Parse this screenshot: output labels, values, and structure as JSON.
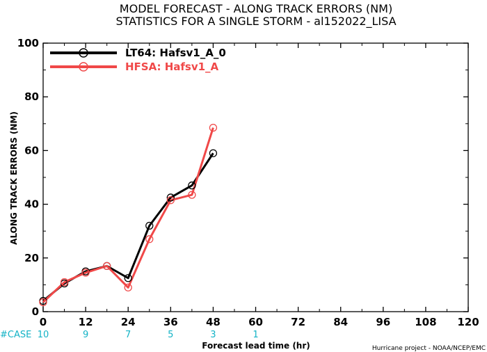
{
  "chart_data": {
    "type": "line",
    "title": "MODEL FORECAST - ALONG TRACK ERRORS (NM)",
    "subtitle": "STATISTICS FOR A SINGLE STORM - al152022_LISA",
    "xlabel": "Forecast lead time (hr)",
    "ylabel": "ALONG TRACK ERRORS (NM)",
    "xlim": [
      0,
      120
    ],
    "ylim": [
      0,
      100
    ],
    "x_ticks": [
      0,
      12,
      24,
      36,
      48,
      60,
      72,
      84,
      96,
      108,
      120
    ],
    "y_ticks": [
      0,
      20,
      40,
      60,
      80,
      100
    ],
    "grid": false,
    "legend_position": "top-left",
    "series": [
      {
        "name": "LT64: Hafsv1_A_0",
        "color": "#000000",
        "x": [
          0,
          6,
          12,
          18,
          24,
          30,
          36,
          42,
          48
        ],
        "y": [
          4,
          10.5,
          15,
          17,
          12.5,
          32,
          42.5,
          47,
          59
        ]
      },
      {
        "name": "HFSA: Hafsv1_A",
        "color": "#f04848",
        "x": [
          0,
          6,
          12,
          18,
          24,
          30,
          36,
          42,
          48
        ],
        "y": [
          3.5,
          11,
          14.5,
          17,
          9,
          27,
          41.5,
          43.5,
          68.5
        ]
      }
    ],
    "cases": {
      "label": "#CASE",
      "x": [
        0,
        12,
        24,
        36,
        48,
        60
      ],
      "values": [
        "10",
        "9",
        "7",
        "5",
        "3",
        "1"
      ],
      "color": "#13b3c6"
    },
    "footer": "Hurricane project - NOAA/NCEP/EMC"
  }
}
